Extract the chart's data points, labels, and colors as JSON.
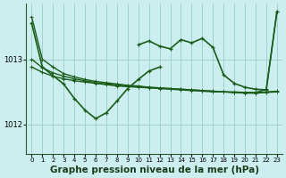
{
  "bg_color": "#cceeee",
  "grid_color": "#99cccc",
  "line_color": "#1a5c1a",
  "xlabel": "Graphe pression niveau de la mer (hPa)",
  "xlabel_fontsize": 7.5,
  "ylabel_ticks": [
    1012,
    1013
  ],
  "xlim": [
    -0.5,
    23.5
  ],
  "ylim": [
    1011.55,
    1013.85
  ],
  "xticks": [
    0,
    1,
    2,
    3,
    4,
    5,
    6,
    7,
    8,
    9,
    10,
    11,
    12,
    13,
    14,
    15,
    16,
    17,
    18,
    19,
    20,
    21,
    22,
    23
  ],
  "series": [
    {
      "x": [
        0,
        1,
        2,
        3,
        4,
        5,
        6,
        7,
        8,
        9,
        10,
        11,
        12,
        13,
        14,
        15,
        16,
        17,
        18,
        19,
        20,
        21,
        22,
        23
      ],
      "y": [
        1013.65,
        1013.0,
        1012.88,
        1012.78,
        1012.73,
        1012.69,
        1012.66,
        1012.64,
        1012.62,
        1012.6,
        1012.59,
        1012.57,
        1012.56,
        1012.55,
        1012.54,
        1012.53,
        1012.52,
        1012.51,
        1012.5,
        1012.49,
        1012.49,
        1012.49,
        1012.54,
        1013.73
      ],
      "lw": 1.0
    },
    {
      "x": [
        0,
        1,
        2,
        3,
        4,
        5,
        6,
        7,
        8,
        9,
        10,
        11,
        12,
        13,
        14,
        15,
        16,
        17,
        18,
        19,
        20,
        21,
        22,
        23
      ],
      "y": [
        1013.0,
        1012.87,
        1012.79,
        1012.74,
        1012.7,
        1012.67,
        1012.64,
        1012.62,
        1012.61,
        1012.59,
        1012.58,
        1012.57,
        1012.56,
        1012.55,
        1012.54,
        1012.53,
        1012.52,
        1012.51,
        1012.5,
        1012.5,
        1012.49,
        1012.49,
        1012.5,
        1012.51
      ],
      "lw": 1.0
    },
    {
      "x": [
        0,
        1,
        2,
        3,
        4,
        5,
        6,
        7,
        8,
        9,
        10,
        11,
        12,
        13,
        14,
        15,
        16,
        17,
        18,
        19,
        20,
        21,
        22,
        23
      ],
      "y": [
        1012.88,
        1012.8,
        1012.74,
        1012.7,
        1012.67,
        1012.65,
        1012.63,
        1012.61,
        1012.59,
        1012.58,
        1012.57,
        1012.56,
        1012.55,
        1012.54,
        1012.53,
        1012.52,
        1012.51,
        1012.5,
        1012.5,
        1012.49,
        1012.48,
        1012.48,
        1012.49,
        1012.5
      ],
      "lw": 1.0
    },
    {
      "x": [
        0,
        1,
        3,
        4,
        5,
        6,
        7,
        8,
        9,
        10,
        11,
        12
      ],
      "y": [
        1013.55,
        1012.88,
        1012.62,
        1012.4,
        1012.22,
        1012.09,
        1012.18,
        1012.36,
        1012.55,
        1012.69,
        1012.82,
        1012.88
      ],
      "lw": 1.2
    },
    {
      "x": [
        10,
        11,
        12,
        13,
        14,
        15,
        16,
        17,
        18,
        19,
        20,
        21,
        22,
        23
      ],
      "y": [
        1013.22,
        1013.28,
        1013.2,
        1013.16,
        1013.3,
        1013.25,
        1013.32,
        1013.18,
        1012.76,
        1012.63,
        1012.57,
        1012.54,
        1012.53,
        1013.73
      ],
      "lw": 1.2
    }
  ]
}
